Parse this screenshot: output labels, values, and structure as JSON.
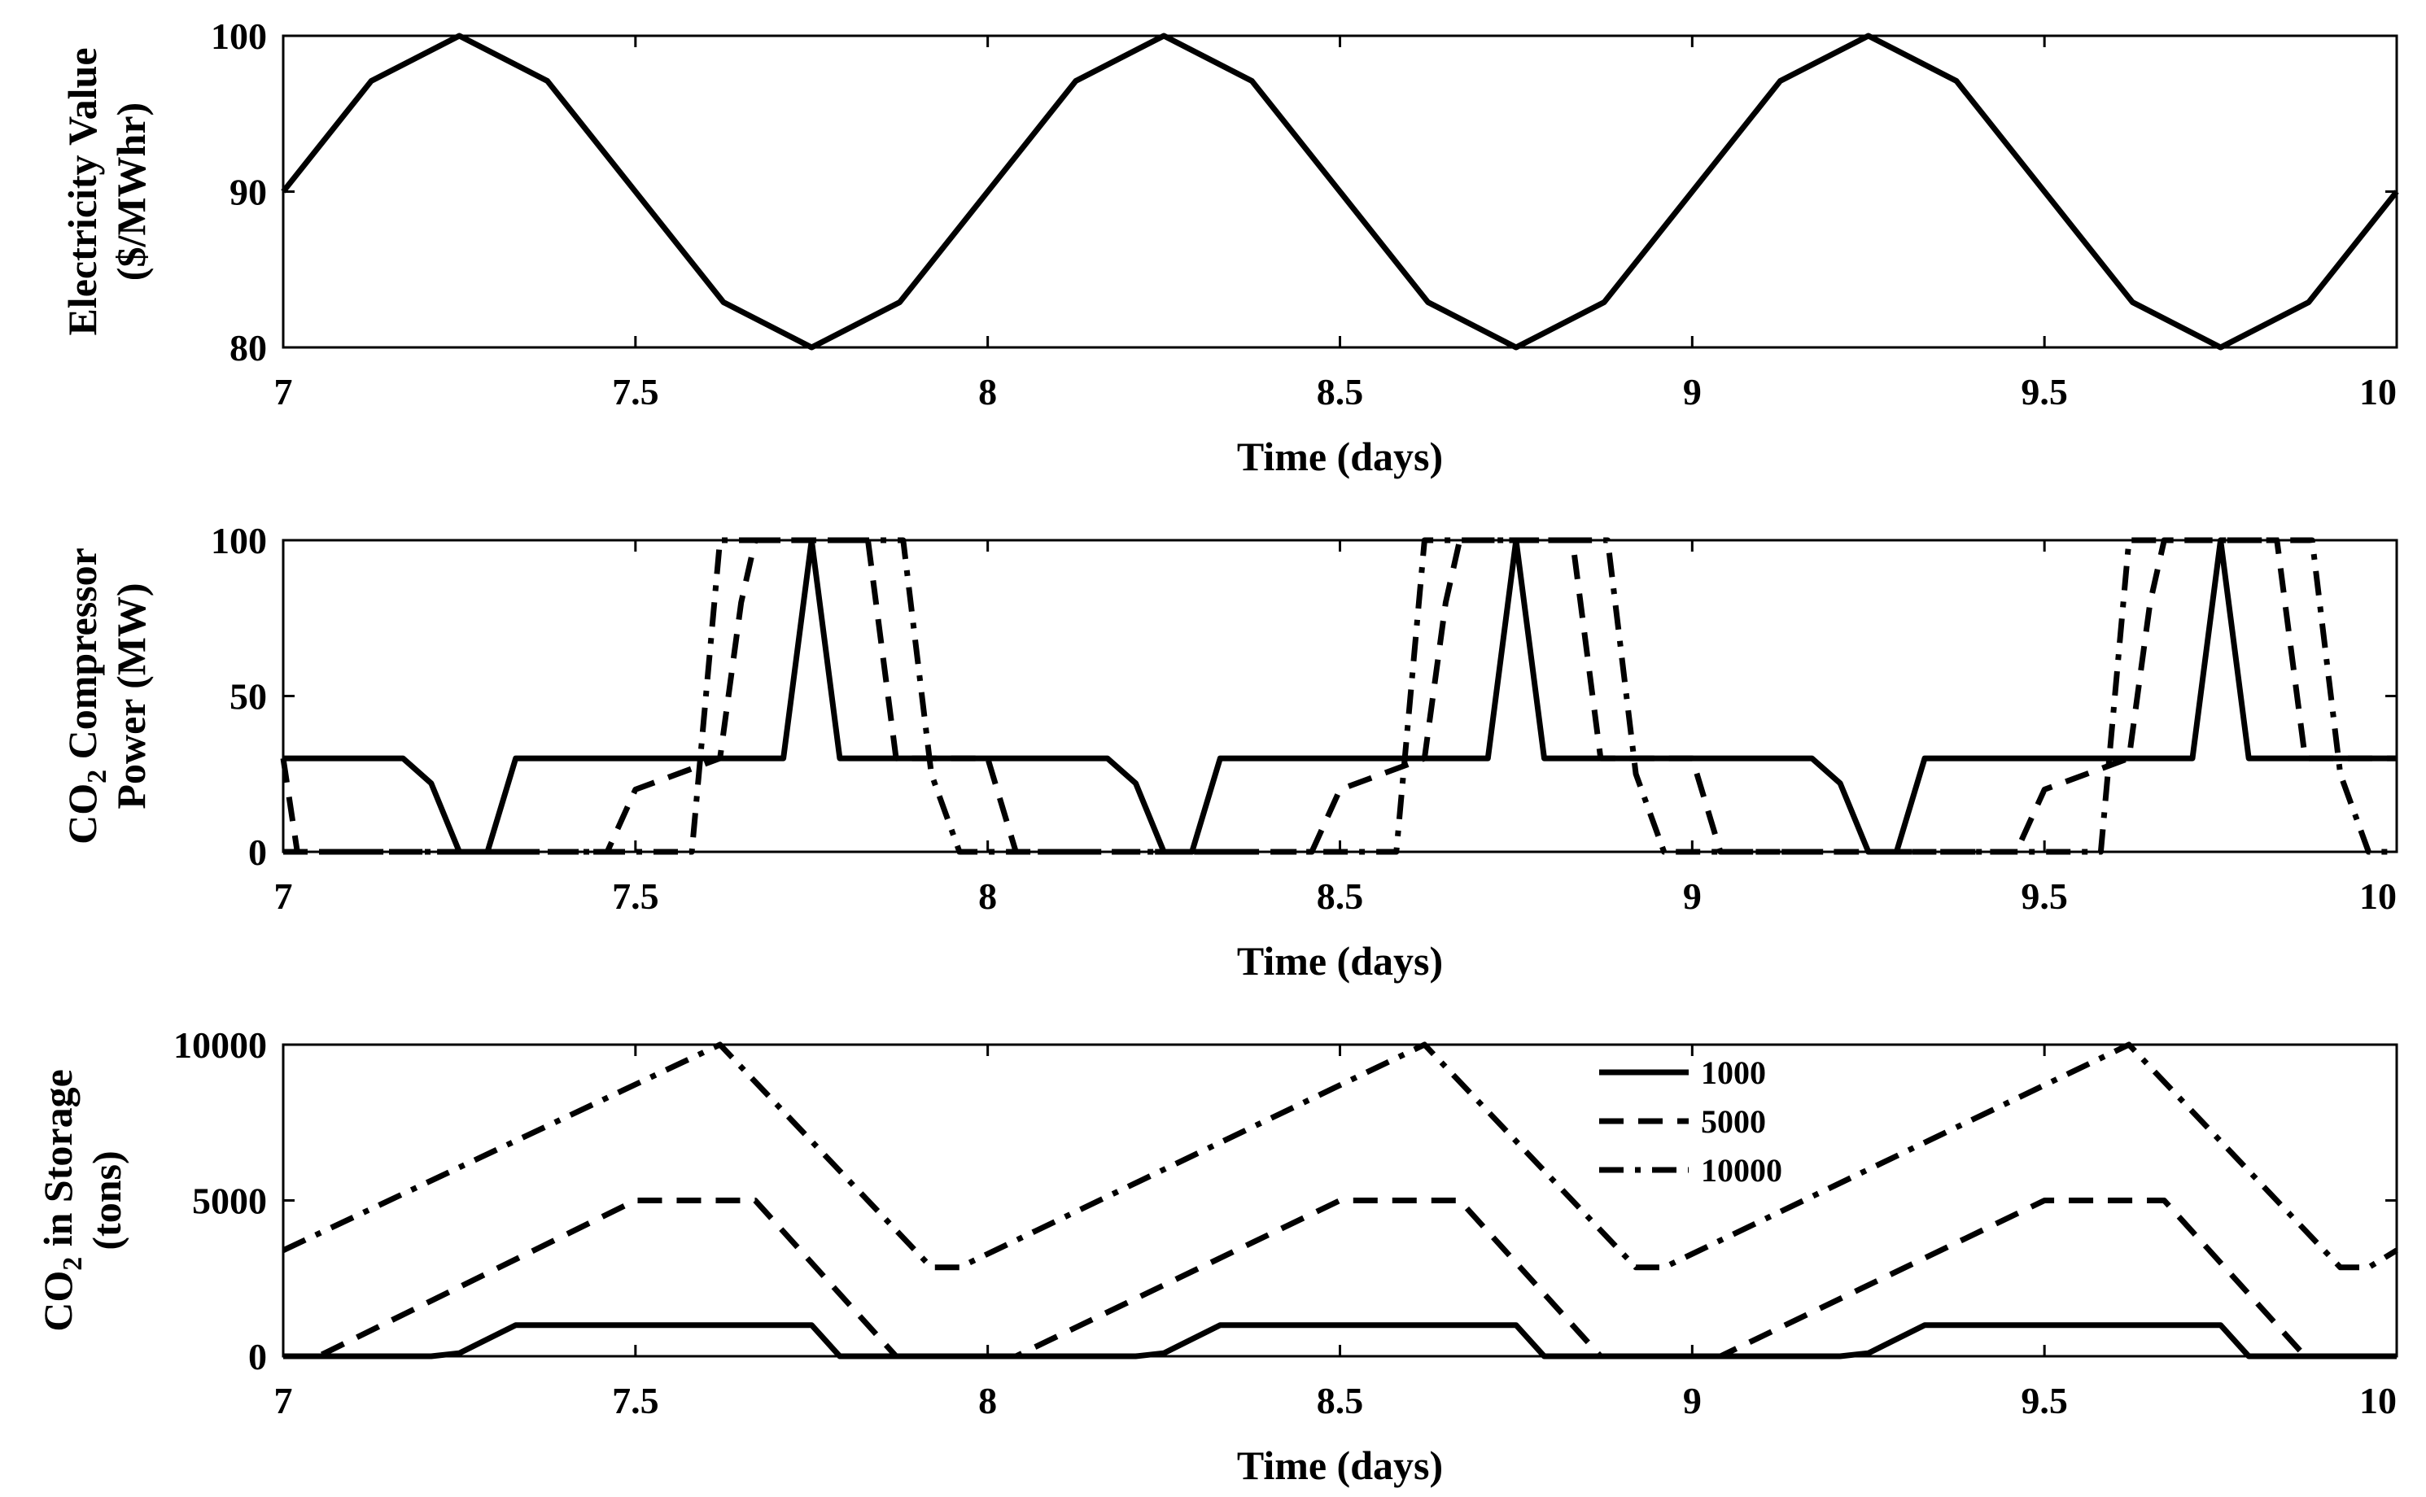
{
  "chart_data": [
    {
      "type": "line",
      "xlabel": "Time (days)",
      "ylabel_lines": [
        "Electricity Value",
        "($/MWhr)"
      ],
      "xlim": [
        7,
        10
      ],
      "ylim": [
        80,
        100
      ],
      "xticks": [
        "7",
        "7.5",
        "8",
        "8.5",
        "9",
        "9.5",
        "10"
      ],
      "yticks": [
        "80",
        "90",
        "100"
      ],
      "grid": false,
      "series": [
        {
          "style": "solid",
          "x": [
            7.0,
            7.125,
            7.25,
            7.375,
            7.5,
            7.625,
            7.75,
            7.875,
            8.0,
            8.125,
            8.25,
            8.375,
            8.5,
            8.625,
            8.75,
            8.875,
            9.0,
            9.125,
            9.25,
            9.375,
            9.5,
            9.625,
            9.75,
            9.875,
            10.0
          ],
          "y": [
            90,
            97.1,
            100,
            97.1,
            90,
            82.9,
            80,
            82.9,
            90,
            97.1,
            100,
            97.1,
            90,
            82.9,
            80,
            82.9,
            90,
            97.1,
            100,
            97.1,
            90,
            82.9,
            80,
            82.9,
            90
          ]
        }
      ]
    },
    {
      "type": "line",
      "xlabel": "Time (days)",
      "ylabel_lines": [
        "CO2 Compressor",
        "Power (MW)"
      ],
      "xlim": [
        7,
        10
      ],
      "ylim": [
        0,
        100
      ],
      "xticks": [
        "7",
        "7.5",
        "8",
        "8.5",
        "9",
        "9.5",
        "10"
      ],
      "yticks": [
        "0",
        "50",
        "100"
      ],
      "grid": false,
      "series": [
        {
          "name": "1000",
          "style": "solid",
          "x": [
            7.0,
            7.17,
            7.21,
            7.25,
            7.29,
            7.33,
            7.71,
            7.75,
            7.79,
            8.17,
            8.21,
            8.25,
            8.29,
            8.33,
            8.71,
            8.75,
            8.79,
            9.17,
            9.21,
            9.25,
            9.29,
            9.33,
            9.71,
            9.75,
            9.79,
            10.0
          ],
          "y": [
            30,
            30,
            22,
            0,
            0,
            30,
            30,
            100,
            30,
            30,
            22,
            0,
            0,
            30,
            30,
            100,
            30,
            30,
            22,
            0,
            0,
            30,
            30,
            100,
            30,
            30
          ]
        },
        {
          "name": "5000",
          "style": "dashed",
          "x": [
            7.0,
            7.02,
            7.46,
            7.5,
            7.62,
            7.65,
            7.67,
            7.83,
            7.87,
            8.0,
            8.04,
            8.46,
            8.5,
            8.62,
            8.65,
            8.67,
            8.83,
            8.87,
            9.0,
            9.04,
            9.46,
            9.5,
            9.62,
            9.65,
            9.67,
            9.83,
            9.87,
            10.0
          ],
          "y": [
            30,
            0,
            0,
            20,
            30,
            80,
            100,
            100,
            30,
            30,
            0,
            0,
            20,
            30,
            80,
            100,
            100,
            30,
            30,
            0,
            0,
            20,
            30,
            80,
            100,
            100,
            30,
            30
          ]
        },
        {
          "name": "10000",
          "style": "dashdot",
          "x": [
            7.0,
            7.58,
            7.62,
            7.88,
            7.92,
            7.96,
            8.58,
            8.62,
            8.88,
            8.92,
            8.96,
            9.58,
            9.62,
            9.88,
            9.92,
            9.96,
            10.0
          ],
          "y": [
            0,
            0,
            100,
            100,
            25,
            0,
            0,
            100,
            100,
            25,
            0,
            0,
            100,
            100,
            25,
            0,
            0
          ]
        }
      ]
    },
    {
      "type": "line",
      "xlabel": "Time (days)",
      "ylabel_lines": [
        "CO2 in Storage",
        "(tons)"
      ],
      "xlim": [
        7,
        10
      ],
      "ylim": [
        0,
        10000
      ],
      "xticks": [
        "7",
        "7.5",
        "8",
        "8.5",
        "9",
        "9.5",
        "10"
      ],
      "yticks": [
        "0",
        "5000",
        "10000"
      ],
      "grid": false,
      "legend": {
        "placement": "top-center",
        "entries": [
          "1000",
          "5000",
          "10000"
        ]
      },
      "series": [
        {
          "name": "1000",
          "style": "solid",
          "x": [
            7.0,
            7.21,
            7.25,
            7.33,
            7.75,
            7.79,
            8.21,
            8.25,
            8.33,
            8.75,
            8.79,
            9.21,
            9.25,
            9.33,
            9.75,
            9.79,
            10.0
          ],
          "y": [
            0,
            0,
            100,
            1000,
            1000,
            0,
            0,
            100,
            1000,
            1000,
            0,
            0,
            100,
            1000,
            1000,
            0,
            0
          ]
        },
        {
          "name": "5000",
          "style": "dashed",
          "x": [
            7.0,
            7.05,
            7.5,
            7.67,
            7.87,
            8.04,
            8.5,
            8.67,
            8.87,
            9.04,
            9.5,
            9.67,
            9.87,
            10.0
          ],
          "y": [
            0,
            0,
            5000,
            5000,
            0,
            0,
            5000,
            5000,
            0,
            0,
            5000,
            5000,
            0,
            0
          ]
        },
        {
          "name": "10000",
          "style": "dashdot",
          "x": [
            7.0,
            7.62,
            7.92,
            7.96,
            8.62,
            8.92,
            8.96,
            9.62,
            9.92,
            9.96,
            10.0
          ],
          "y": [
            3400,
            10000,
            2850,
            2850,
            10000,
            2850,
            2850,
            10000,
            2850,
            2850,
            3400
          ]
        }
      ]
    }
  ]
}
